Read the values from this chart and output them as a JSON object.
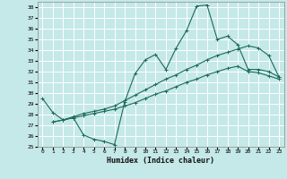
{
  "xlabel": "Humidex (Indice chaleur)",
  "xlim": [
    -0.5,
    23.5
  ],
  "ylim": [
    25,
    38.5
  ],
  "yticks": [
    25,
    26,
    27,
    28,
    29,
    30,
    31,
    32,
    33,
    34,
    35,
    36,
    37,
    38
  ],
  "xticks": [
    0,
    1,
    2,
    3,
    4,
    5,
    6,
    7,
    8,
    9,
    10,
    11,
    12,
    13,
    14,
    15,
    16,
    17,
    18,
    19,
    20,
    21,
    22,
    23
  ],
  "bg_color": "#c5e8e8",
  "grid_color": "#ffffff",
  "line_color": "#1a6b5a",
  "line1_x": [
    0,
    1,
    2,
    3,
    4,
    5,
    6,
    7,
    8,
    9,
    10,
    11,
    12,
    13,
    14,
    15,
    16,
    17,
    18,
    19,
    20,
    21,
    22,
    23
  ],
  "line1_y": [
    29.5,
    28.2,
    27.5,
    27.7,
    26.1,
    25.7,
    25.5,
    25.2,
    29.2,
    31.8,
    33.1,
    33.6,
    32.2,
    34.2,
    35.8,
    38.1,
    38.2,
    35.0,
    35.3,
    34.5,
    32.2,
    32.2,
    32.0,
    31.5
  ],
  "line2_x": [
    1,
    2,
    3,
    4,
    5,
    6,
    7,
    8,
    9,
    10,
    11,
    12,
    13,
    14,
    15,
    16,
    17,
    18,
    19,
    20,
    21,
    22,
    23
  ],
  "line2_y": [
    27.3,
    27.5,
    27.8,
    28.1,
    28.3,
    28.5,
    28.8,
    29.3,
    29.8,
    30.3,
    30.8,
    31.3,
    31.7,
    32.2,
    32.6,
    33.1,
    33.5,
    33.8,
    34.1,
    34.4,
    34.2,
    33.5,
    31.5
  ],
  "line3_x": [
    1,
    2,
    3,
    4,
    5,
    6,
    7,
    8,
    9,
    10,
    11,
    12,
    13,
    14,
    15,
    16,
    17,
    18,
    19,
    20,
    21,
    22,
    23
  ],
  "line3_y": [
    27.3,
    27.5,
    27.7,
    27.9,
    28.1,
    28.3,
    28.5,
    28.8,
    29.1,
    29.5,
    29.9,
    30.2,
    30.6,
    31.0,
    31.3,
    31.7,
    32.0,
    32.3,
    32.5,
    32.0,
    31.9,
    31.6,
    31.3
  ]
}
